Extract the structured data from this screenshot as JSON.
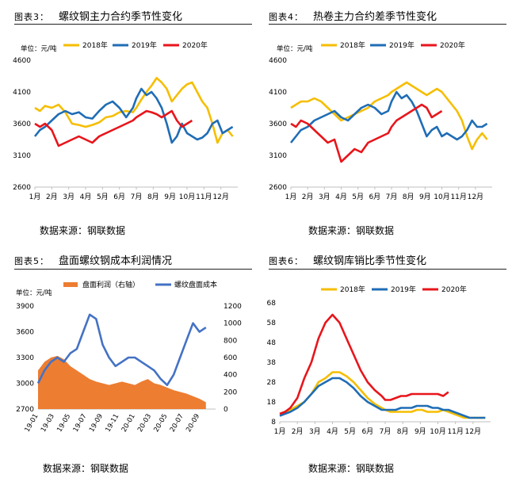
{
  "sources": [
    "数据来源：钢联数据",
    "数据来源：钢联数据",
    "数据来源：钢联数据",
    "数据来源：钢联数据"
  ],
  "colors": {
    "y2018": "#F5BE00",
    "y2019": "#1F6DB5",
    "y2020": "#E8151B",
    "profit": "#ED7D31",
    "cost": "#4472C4"
  },
  "chart_data": [
    {
      "type": "line",
      "tag": "图表3：",
      "title": "螺纹钢主力合约季节性变化",
      "unit": "单位：元/吨",
      "ylim": [
        2600,
        4600
      ],
      "yticks": [
        2600,
        3100,
        3600,
        4100,
        4600
      ],
      "categories": [
        "1月",
        "2月",
        "3月",
        "4月",
        "5月",
        "6月",
        "7月",
        "8月",
        "9月",
        "10月",
        "11月",
        "12月"
      ],
      "legend_position": "top",
      "series": [
        {
          "name": "2018年",
          "color": "#F5BE00",
          "x": [
            1,
            1.3,
            1.6,
            2.0,
            2.4,
            2.8,
            3.2,
            3.6,
            4.0,
            4.4,
            4.8,
            5.2,
            5.6,
            6.0,
            6.4,
            6.8,
            7.0,
            7.3,
            7.6,
            7.9,
            8.2,
            8.5,
            8.8,
            9.1,
            9.4,
            9.7,
            10.0,
            10.3,
            10.6,
            10.9,
            11.2,
            11.5,
            11.8,
            12.1,
            12.4,
            12.7
          ],
          "values": [
            3850,
            3800,
            3880,
            3850,
            3900,
            3780,
            3600,
            3580,
            3550,
            3580,
            3620,
            3700,
            3720,
            3780,
            3800,
            3780,
            3850,
            3980,
            4100,
            4200,
            4320,
            4250,
            4150,
            3950,
            4050,
            4150,
            4220,
            4250,
            4100,
            3950,
            3850,
            3600,
            3300,
            3450,
            3500,
            3400
          ]
        },
        {
          "name": "2019年",
          "color": "#1F6DB5",
          "x": [
            1,
            1.3,
            1.6,
            2.0,
            2.4,
            2.8,
            3.2,
            3.6,
            4.0,
            4.4,
            4.8,
            5.2,
            5.6,
            6.0,
            6.4,
            6.8,
            7.0,
            7.3,
            7.6,
            7.9,
            8.2,
            8.5,
            8.8,
            9.1,
            9.4,
            9.7,
            10.0,
            10.3,
            10.6,
            10.9,
            11.2,
            11.5,
            11.8,
            12.1,
            12.4,
            12.7
          ],
          "values": [
            3400,
            3500,
            3550,
            3650,
            3750,
            3800,
            3750,
            3780,
            3700,
            3680,
            3800,
            3900,
            3950,
            3850,
            3700,
            3850,
            4000,
            4150,
            4050,
            4100,
            4000,
            3850,
            3600,
            3300,
            3400,
            3600,
            3450,
            3400,
            3350,
            3380,
            3450,
            3600,
            3650,
            3450,
            3500,
            3550
          ]
        },
        {
          "name": "2020年",
          "color": "#E8151B",
          "x": [
            1,
            1.3,
            1.6,
            2.0,
            2.4,
            2.8,
            3.2,
            3.6,
            4.0,
            4.4,
            4.8,
            5.2,
            5.6,
            6.0,
            6.4,
            6.8,
            7.0,
            7.3,
            7.6,
            7.9,
            8.2,
            8.5,
            8.8,
            9.1,
            9.4,
            9.7,
            10.0,
            10.3
          ],
          "values": [
            3600,
            3550,
            3600,
            3500,
            3250,
            3300,
            3350,
            3400,
            3350,
            3300,
            3400,
            3450,
            3500,
            3550,
            3600,
            3650,
            3700,
            3750,
            3800,
            3780,
            3750,
            3700,
            3750,
            3800,
            3650,
            3550,
            3600,
            3650
          ]
        }
      ]
    },
    {
      "type": "line",
      "tag": "图表4：",
      "title": "热卷主力合约差季节性变化",
      "unit": "单位：元/吨",
      "ylim": [
        2600,
        4600
      ],
      "yticks": [
        2600,
        3100,
        3600,
        4100,
        4600
      ],
      "categories": [
        "1月",
        "2月",
        "3月",
        "4月",
        "5月",
        "6月",
        "7月",
        "8月",
        "9月",
        "10月",
        "11月",
        "12月"
      ],
      "legend_position": "top",
      "series": [
        {
          "name": "2018年",
          "color": "#F5BE00",
          "x": [
            1,
            1.3,
            1.6,
            2.0,
            2.4,
            2.8,
            3.2,
            3.6,
            4.0,
            4.4,
            4.8,
            5.2,
            5.6,
            6.0,
            6.4,
            6.8,
            7.0,
            7.3,
            7.6,
            7.9,
            8.2,
            8.5,
            8.8,
            9.1,
            9.4,
            9.7,
            10.0,
            10.3,
            10.6,
            10.9,
            11.2,
            11.5,
            11.8,
            12.1,
            12.4,
            12.7
          ],
          "values": [
            3850,
            3900,
            3950,
            3950,
            4000,
            3950,
            3850,
            3750,
            3650,
            3700,
            3750,
            3800,
            3850,
            3950,
            4000,
            4050,
            4100,
            4150,
            4200,
            4250,
            4200,
            4150,
            4100,
            4050,
            4100,
            4150,
            4100,
            4000,
            3900,
            3800,
            3650,
            3400,
            3200,
            3350,
            3450,
            3350
          ]
        },
        {
          "name": "2019年",
          "color": "#1F6DB5",
          "x": [
            1,
            1.3,
            1.6,
            2.0,
            2.4,
            2.8,
            3.2,
            3.6,
            4.0,
            4.4,
            4.8,
            5.2,
            5.6,
            6.0,
            6.4,
            6.8,
            7.0,
            7.3,
            7.6,
            7.9,
            8.2,
            8.5,
            8.8,
            9.1,
            9.4,
            9.7,
            10.0,
            10.3,
            10.6,
            10.9,
            11.2,
            11.5,
            11.8,
            12.1,
            12.4,
            12.7
          ],
          "values": [
            3300,
            3400,
            3500,
            3550,
            3650,
            3700,
            3750,
            3800,
            3700,
            3650,
            3750,
            3850,
            3900,
            3850,
            3750,
            3800,
            3950,
            4100,
            4000,
            4050,
            3950,
            3800,
            3600,
            3400,
            3500,
            3550,
            3400,
            3450,
            3400,
            3350,
            3400,
            3500,
            3650,
            3550,
            3550,
            3600
          ]
        },
        {
          "name": "2020年",
          "color": "#E8151B",
          "x": [
            1,
            1.3,
            1.6,
            2.0,
            2.4,
            2.8,
            3.2,
            3.6,
            4.0,
            4.4,
            4.8,
            5.2,
            5.6,
            6.0,
            6.4,
            6.8,
            7.0,
            7.3,
            7.6,
            7.9,
            8.2,
            8.5,
            8.8,
            9.1,
            9.4,
            9.7,
            10.0
          ],
          "values": [
            3600,
            3550,
            3650,
            3600,
            3500,
            3400,
            3300,
            3350,
            3000,
            3100,
            3200,
            3150,
            3300,
            3350,
            3400,
            3450,
            3550,
            3650,
            3700,
            3750,
            3800,
            3850,
            3900,
            3850,
            3700,
            3750,
            3800
          ]
        }
      ]
    },
    {
      "type": "bar+line",
      "tag": "图表5：",
      "title": "盘面螺纹钢成本利润情况",
      "unit": "单位：元/吨",
      "ylim": [
        2700,
        3900
      ],
      "yticks": [
        2700,
        3000,
        3300,
        3600,
        3900
      ],
      "y2lim": [
        0,
        1200
      ],
      "y2ticks": [
        0,
        200,
        400,
        600,
        800,
        1000,
        1200
      ],
      "categories": [
        "19-01",
        "19-03",
        "19-05",
        "19-07",
        "19-09",
        "19-11",
        "20-01",
        "20-03",
        "20-05",
        "20-07",
        "20-09"
      ],
      "legend_position": "top",
      "series": [
        {
          "name": "盘面利润（右轴）",
          "kind": "bar",
          "axis": "right",
          "color": "#ED7D31",
          "x": [
            0,
            0.4,
            0.8,
            1.2,
            1.6,
            2.0,
            2.4,
            2.8,
            3.2,
            3.6,
            4.0,
            4.4,
            4.8,
            5.2,
            5.6,
            6.0,
            6.4,
            6.8,
            7.2,
            7.6,
            8.0,
            8.4,
            8.8,
            9.2,
            9.6,
            10.0,
            10.4
          ],
          "values": [
            450,
            550,
            600,
            620,
            580,
            500,
            450,
            400,
            350,
            320,
            300,
            280,
            300,
            320,
            300,
            280,
            320,
            350,
            300,
            280,
            250,
            220,
            200,
            180,
            150,
            120,
            80
          ]
        },
        {
          "name": "螺纹盘面成本",
          "kind": "line",
          "axis": "left",
          "color": "#4472C4",
          "x": [
            0,
            0.4,
            0.8,
            1.2,
            1.6,
            2.0,
            2.4,
            2.8,
            3.2,
            3.6,
            4.0,
            4.4,
            4.8,
            5.2,
            5.6,
            6.0,
            6.4,
            6.8,
            7.2,
            7.6,
            8.0,
            8.4,
            8.8,
            9.2,
            9.6,
            10.0,
            10.4
          ],
          "values": [
            3000,
            3150,
            3250,
            3300,
            3250,
            3350,
            3400,
            3600,
            3800,
            3750,
            3450,
            3300,
            3200,
            3250,
            3300,
            3300,
            3250,
            3200,
            3150,
            3050,
            2980,
            3100,
            3300,
            3500,
            3700,
            3600,
            3650
          ]
        }
      ]
    },
    {
      "type": "line",
      "tag": "图表6：",
      "title": "螺纹钢库销比季节性变化",
      "ylim": [
        8,
        68
      ],
      "yticks": [
        8,
        18,
        28,
        38,
        48,
        58,
        68
      ],
      "categories": [
        "1月",
        "2月",
        "3月",
        "4月",
        "5月",
        "6月",
        "7月",
        "8月",
        "9月",
        "10月",
        "11月",
        "12月"
      ],
      "legend_position": "top",
      "series": [
        {
          "name": "2018年",
          "color": "#F5BE00",
          "x": [
            1,
            1.3,
            1.6,
            2.0,
            2.4,
            2.8,
            3.2,
            3.6,
            4.0,
            4.4,
            4.8,
            5.2,
            5.6,
            6.0,
            6.4,
            6.8,
            7.0,
            7.3,
            7.6,
            7.9,
            8.2,
            8.5,
            8.8,
            9.1,
            9.4,
            9.7,
            10.0,
            10.3,
            10.6,
            10.9,
            11.2,
            11.5,
            11.8,
            12.1,
            12.4,
            12.7
          ],
          "values": [
            12,
            13,
            14,
            16,
            18,
            22,
            28,
            30,
            33,
            33,
            31,
            28,
            24,
            20,
            17,
            15,
            14,
            13,
            13,
            13,
            13,
            13,
            14,
            14,
            13,
            13,
            13,
            14,
            13,
            12,
            11,
            10,
            10,
            10,
            10,
            10
          ]
        },
        {
          "name": "2019年",
          "color": "#1F6DB5",
          "x": [
            1,
            1.3,
            1.6,
            2.0,
            2.4,
            2.8,
            3.2,
            3.6,
            4.0,
            4.4,
            4.8,
            5.2,
            5.6,
            6.0,
            6.4,
            6.8,
            7.0,
            7.3,
            7.6,
            7.9,
            8.2,
            8.5,
            8.8,
            9.1,
            9.4,
            9.7,
            10.0,
            10.3,
            10.6,
            10.9,
            11.2,
            11.5,
            11.8,
            12.1,
            12.4,
            12.7
          ],
          "values": [
            11,
            12,
            13,
            15,
            18,
            22,
            26,
            28,
            30,
            30,
            28,
            25,
            21,
            18,
            16,
            14,
            14,
            14,
            14,
            15,
            15,
            15,
            16,
            16,
            16,
            15,
            15,
            14,
            14,
            13,
            12,
            11,
            10,
            10,
            10,
            10
          ]
        },
        {
          "name": "2020年",
          "color": "#E8151B",
          "x": [
            1,
            1.3,
            1.6,
            2.0,
            2.4,
            2.8,
            3.2,
            3.6,
            4.0,
            4.4,
            4.8,
            5.2,
            5.6,
            6.0,
            6.4,
            6.8,
            7.0,
            7.3,
            7.6,
            7.9,
            8.2,
            8.5,
            8.8,
            9.1,
            9.4,
            9.7,
            10.0,
            10.3,
            10.6
          ],
          "values": [
            12,
            13,
            15,
            20,
            30,
            38,
            50,
            58,
            62,
            58,
            50,
            42,
            34,
            28,
            24,
            21,
            19,
            19,
            20,
            21,
            21,
            22,
            22,
            22,
            22,
            22,
            22,
            21,
            23
          ]
        }
      ]
    }
  ]
}
